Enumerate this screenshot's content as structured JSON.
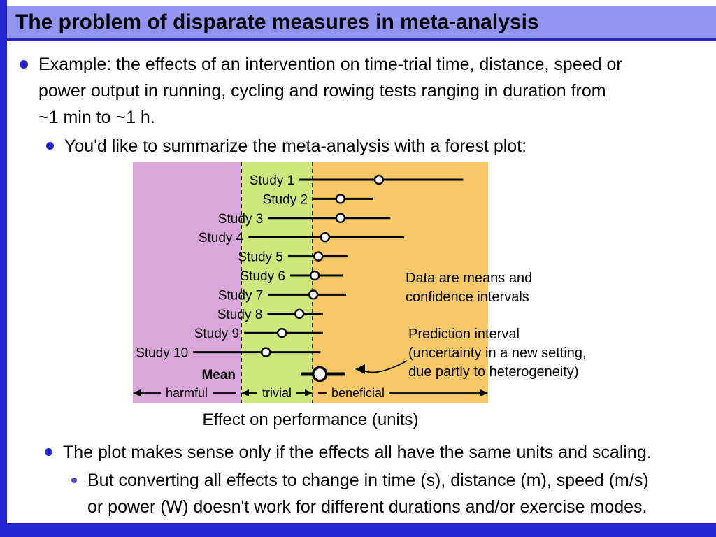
{
  "slide": {
    "title": "The problem of disparate measures in meta-analysis",
    "bullets": {
      "example": "Example: the effects of an intervention on time-trial time, distance, speed or\npower output in running, cycling and rowing tests ranging in duration from\n~1 min to ~1 h.",
      "forest_intro": "You'd like to summarize the meta-analysis with a forest plot:",
      "same_units": "The plot makes sense only if the effects all have the same units and scaling.",
      "converting": "But converting all effects to change in time (s), distance (m), speed (m/s)\nor power (W) doesn't work for different durations and/or exercise modes."
    }
  },
  "annotations": {
    "means_ci_line1": "Data are means and",
    "means_ci_line2": "confidence intervals",
    "prediction_line1": "Prediction interval",
    "prediction_line2": "(uncertainty in a new setting,",
    "prediction_line3": "due partly to heterogeneity)"
  },
  "colors": {
    "frame_blue": "#2626cf",
    "title_band": "#9295ef",
    "bullet_blue": "#2626cf",
    "sub_bullet_purple": "#4d44b8"
  },
  "chart_data": {
    "type": "forest",
    "xlabel": "Effect on performance (units)",
    "xlim": [
      -4.04,
      5.92
    ],
    "zone_boundaries": [
      -1,
      1
    ],
    "zones": [
      {
        "label": "harmful",
        "range": [
          -4.04,
          -1.0
        ],
        "color": "#d9a6d9"
      },
      {
        "label": "trivial",
        "range": [
          -1.0,
          1.0
        ],
        "color": "#cde87d"
      },
      {
        "label": "beneficial",
        "range": [
          1.0,
          5.92
        ],
        "color": "#f7c868"
      }
    ],
    "studies": [
      {
        "label": "Study 1",
        "mean": 2.86,
        "ci": [
          0.63,
          5.22
        ]
      },
      {
        "label": "Study 2",
        "mean": 1.78,
        "ci": [
          1.0,
          2.69
        ]
      },
      {
        "label": "Study 3",
        "mean": 1.78,
        "ci": [
          -0.25,
          3.18
        ]
      },
      {
        "label": "Study 4",
        "mean": 1.35,
        "ci": [
          -0.8,
          3.57
        ]
      },
      {
        "label": "Study 5",
        "mean": 1.16,
        "ci": [
          0.31,
          1.98
        ]
      },
      {
        "label": "Study 6",
        "mean": 1.06,
        "ci": [
          0.37,
          1.84
        ]
      },
      {
        "label": "Study 7",
        "mean": 1.02,
        "ci": [
          -0.25,
          1.94
        ]
      },
      {
        "label": "Study 8",
        "mean": 0.63,
        "ci": [
          -0.27,
          1.29
        ]
      },
      {
        "label": "Study 9",
        "mean": 0.14,
        "ci": [
          -0.92,
          1.29
        ]
      },
      {
        "label": "Study 10",
        "mean": -0.31,
        "ci": [
          -2.35,
          1.22
        ]
      }
    ],
    "summary": {
      "label": "Mean",
      "mean": 1.2,
      "prediction_interval": [
        0.67,
        1.92
      ]
    }
  }
}
